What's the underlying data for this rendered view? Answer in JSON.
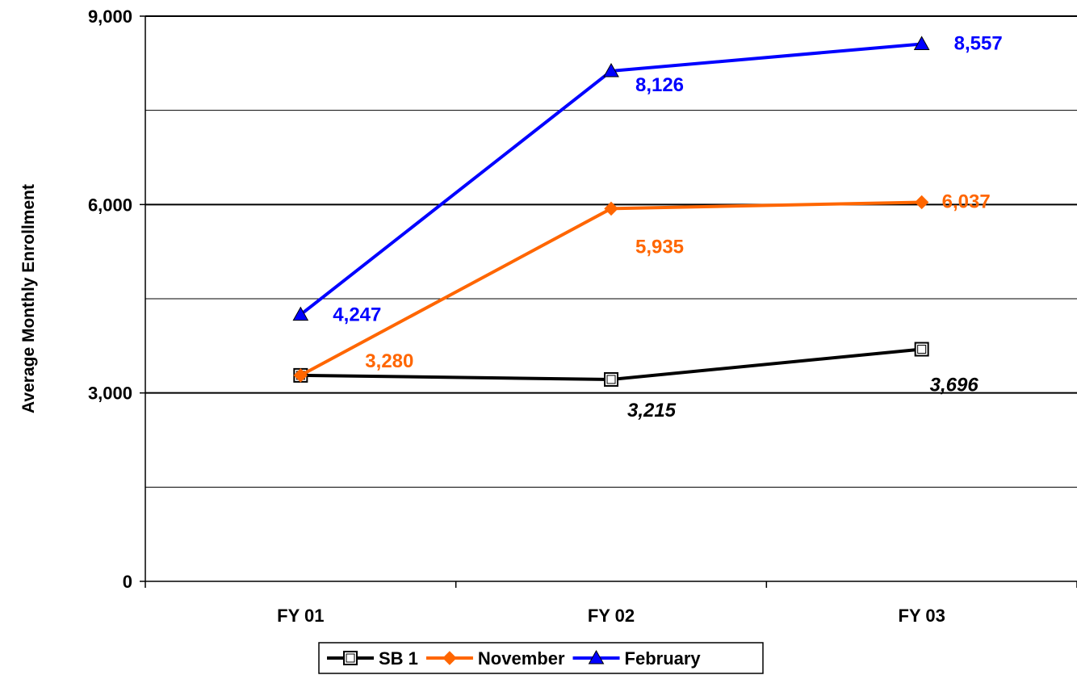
{
  "chart_data": {
    "type": "line",
    "categories": [
      "FY 01",
      "FY 02",
      "FY 03"
    ],
    "ylabel": "Average Monthly Enrollment",
    "ylim": [
      0,
      9000
    ],
    "y_ticks": [
      "0",
      "3,000",
      "6,000",
      "9,000"
    ],
    "grid": "horizontal",
    "legend_position": "bottom",
    "series": [
      {
        "name": "SB 1",
        "color": "#000000",
        "marker": "square",
        "values": [
          3280,
          3215,
          3696
        ],
        "labels": [
          "",
          "3,215",
          "3,696"
        ],
        "label_style": "italic"
      },
      {
        "name": "November",
        "color": "#FF6600",
        "marker": "diamond",
        "values": [
          3280,
          5935,
          6037
        ],
        "labels": [
          "3,280",
          "5,935",
          "6,037"
        ],
        "label_style": "normal"
      },
      {
        "name": "February",
        "color": "#0000FF",
        "marker": "triangle",
        "values": [
          4247,
          8126,
          8557
        ],
        "labels": [
          "4,247",
          "8,126",
          "8,557"
        ],
        "label_style": "normal"
      }
    ]
  }
}
